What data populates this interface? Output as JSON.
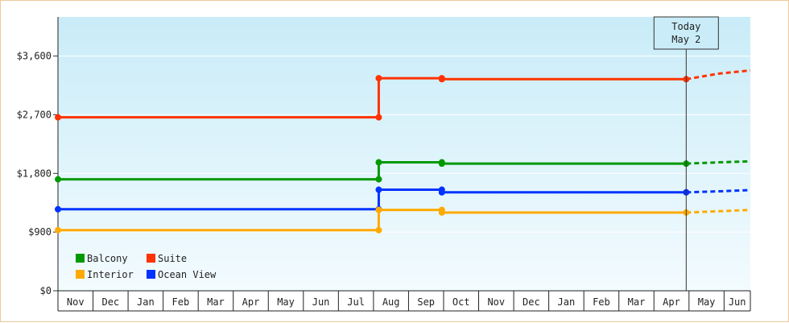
{
  "chart_data": {
    "type": "line",
    "title": "",
    "xlabel": "",
    "ylabel": "",
    "ylim": [
      0,
      4200
    ],
    "yticks": [
      0,
      900,
      1800,
      2700,
      3600
    ],
    "ytick_labels": [
      "$0",
      "$900",
      "$1,800",
      "$2,700",
      "$3,600"
    ],
    "month_labels": [
      "Nov",
      "Dec",
      "Jan",
      "Feb",
      "Mar",
      "Apr",
      "May",
      "Jun",
      "Jul",
      "Aug",
      "Sep",
      "Oct",
      "Nov",
      "Dec",
      "Jan",
      "Feb",
      "Mar",
      "Apr",
      "May",
      "Jun"
    ],
    "x_domain": [
      0,
      19.75
    ],
    "grid": true,
    "legend_position": "bottom-left",
    "today": {
      "line1": "Today",
      "line2": "May 2",
      "x": 17.92
    },
    "series": [
      {
        "name": "Suite",
        "color": "#ff3300",
        "points": [
          [
            0,
            2660
          ],
          [
            9.15,
            2660
          ],
          [
            9.15,
            3260
          ],
          [
            10.95,
            3260
          ],
          [
            10.95,
            3245
          ],
          [
            17.92,
            3245
          ]
        ],
        "markers": [
          [
            0,
            2660
          ],
          [
            9.15,
            2660
          ],
          [
            9.15,
            3260
          ],
          [
            10.95,
            3260
          ],
          [
            10.95,
            3245
          ],
          [
            17.92,
            3245
          ]
        ],
        "forecast": [
          [
            17.92,
            3245
          ],
          [
            18.85,
            3330
          ],
          [
            19.75,
            3380
          ]
        ]
      },
      {
        "name": "Balcony",
        "color": "#009900",
        "points": [
          [
            0,
            1710
          ],
          [
            9.15,
            1710
          ],
          [
            9.15,
            1970
          ],
          [
            10.95,
            1970
          ],
          [
            10.95,
            1950
          ],
          [
            17.92,
            1950
          ]
        ],
        "markers": [
          [
            0,
            1710
          ],
          [
            9.15,
            1710
          ],
          [
            9.15,
            1970
          ],
          [
            10.95,
            1970
          ],
          [
            10.95,
            1950
          ],
          [
            17.92,
            1950
          ]
        ],
        "forecast": [
          [
            17.92,
            1950
          ],
          [
            18.85,
            1970
          ],
          [
            19.75,
            1985
          ]
        ]
      },
      {
        "name": "Ocean View",
        "color": "#0033ff",
        "points": [
          [
            0,
            1250
          ],
          [
            9.15,
            1250
          ],
          [
            9.15,
            1550
          ],
          [
            10.95,
            1550
          ],
          [
            10.95,
            1510
          ],
          [
            17.92,
            1510
          ]
        ],
        "markers": [
          [
            0,
            1250
          ],
          [
            9.15,
            1250
          ],
          [
            9.15,
            1550
          ],
          [
            10.95,
            1550
          ],
          [
            10.95,
            1510
          ],
          [
            17.92,
            1510
          ]
        ],
        "forecast": [
          [
            17.92,
            1510
          ],
          [
            18.85,
            1525
          ],
          [
            19.75,
            1545
          ]
        ]
      },
      {
        "name": "Interior",
        "color": "#ffaa00",
        "points": [
          [
            0,
            930
          ],
          [
            9.15,
            930
          ],
          [
            9.15,
            1240
          ],
          [
            10.95,
            1240
          ],
          [
            10.95,
            1200
          ],
          [
            17.92,
            1200
          ]
        ],
        "markers": [
          [
            0,
            930
          ],
          [
            9.15,
            930
          ],
          [
            9.15,
            1240
          ],
          [
            10.95,
            1240
          ],
          [
            10.95,
            1200
          ],
          [
            17.92,
            1200
          ]
        ],
        "forecast": [
          [
            17.92,
            1200
          ],
          [
            18.85,
            1220
          ],
          [
            19.75,
            1240
          ]
        ]
      }
    ],
    "legend_order": [
      "Balcony",
      "Suite",
      "Interior",
      "Ocean View"
    ]
  }
}
